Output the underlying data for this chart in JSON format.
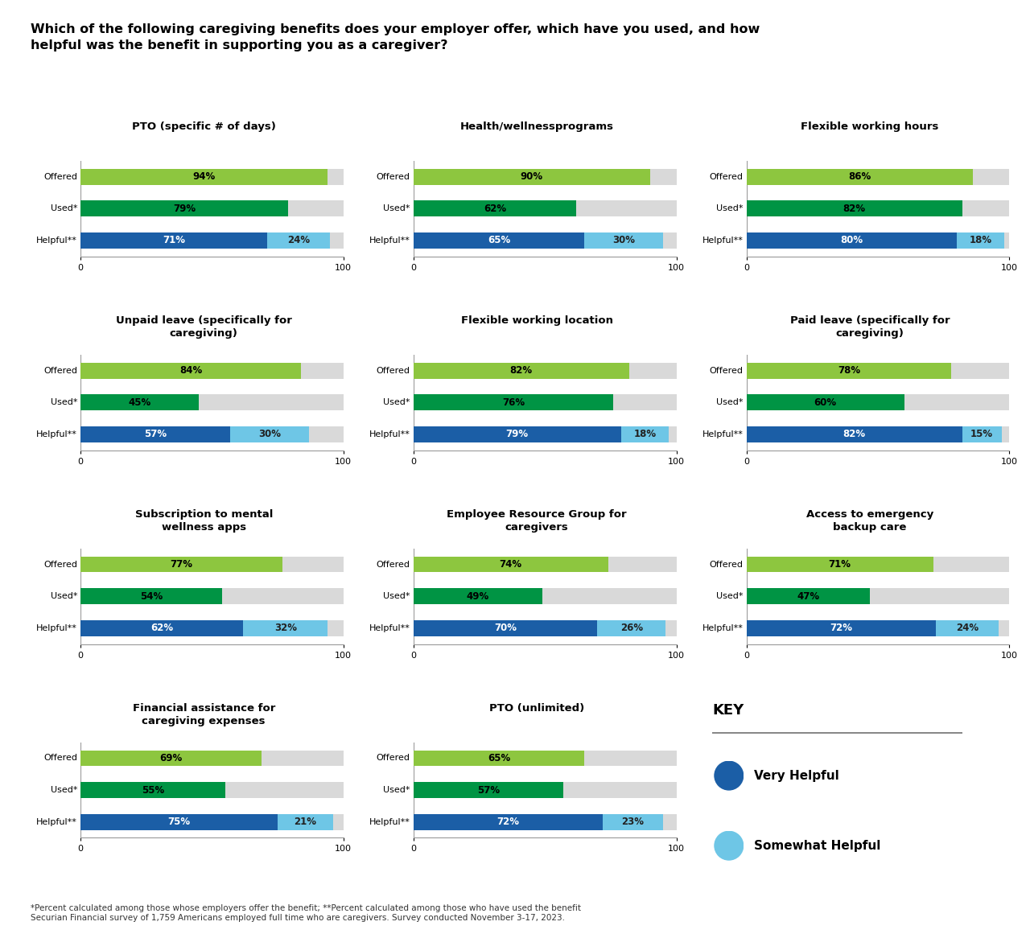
{
  "title": "Which of the following caregiving benefits does your employer offer, which have you used, and how\nhelpful was the benefit in supporting you as a caregiver?",
  "footnote": "*Percent calculated among those whose employers offer the benefit; **Percent calculated among those who have used the benefit\nSecurian Financial survey of 1,759 Americans employed full time who are caregivers. Survey conducted November 3-17, 2023.",
  "color_offered": "#8DC63F",
  "color_used": "#009444",
  "color_very_helpful": "#1B5EA6",
  "color_somewhat_helpful": "#6EC6E6",
  "color_bg_bar": "#D9D9D9",
  "charts": [
    {
      "title": "PTO (specific # of days)",
      "offered": 94,
      "used": 79,
      "very_helpful": 71,
      "somewhat_helpful": 24,
      "row": 0,
      "col": 0
    },
    {
      "title": "Health/wellnessprograms",
      "offered": 90,
      "used": 62,
      "very_helpful": 65,
      "somewhat_helpful": 30,
      "row": 0,
      "col": 1
    },
    {
      "title": "Flexible working hours",
      "offered": 86,
      "used": 82,
      "very_helpful": 80,
      "somewhat_helpful": 18,
      "row": 0,
      "col": 2
    },
    {
      "title": "Unpaid leave (specifically for\ncaregiving)",
      "offered": 84,
      "used": 45,
      "very_helpful": 57,
      "somewhat_helpful": 30,
      "row": 1,
      "col": 0
    },
    {
      "title": "Flexible working location",
      "offered": 82,
      "used": 76,
      "very_helpful": 79,
      "somewhat_helpful": 18,
      "row": 1,
      "col": 1
    },
    {
      "title": "Paid leave (specifically for\ncaregiving)",
      "offered": 78,
      "used": 60,
      "very_helpful": 82,
      "somewhat_helpful": 15,
      "row": 1,
      "col": 2
    },
    {
      "title": "Subscription to mental\nwellness apps",
      "offered": 77,
      "used": 54,
      "very_helpful": 62,
      "somewhat_helpful": 32,
      "row": 2,
      "col": 0
    },
    {
      "title": "Employee Resource Group for\ncaregivers",
      "offered": 74,
      "used": 49,
      "very_helpful": 70,
      "somewhat_helpful": 26,
      "row": 2,
      "col": 1
    },
    {
      "title": "Access to emergency\nbackup care",
      "offered": 71,
      "used": 47,
      "very_helpful": 72,
      "somewhat_helpful": 24,
      "row": 2,
      "col": 2
    },
    {
      "title": "Financial assistance for\ncaregiving expenses",
      "offered": 69,
      "used": 55,
      "very_helpful": 75,
      "somewhat_helpful": 21,
      "row": 3,
      "col": 0
    },
    {
      "title": "PTO (unlimited)",
      "offered": 65,
      "used": 57,
      "very_helpful": 72,
      "somewhat_helpful": 23,
      "row": 3,
      "col": 1
    }
  ],
  "key_title": "KEY",
  "key_very_helpful": "Very Helpful",
  "key_somewhat_helpful": "Somewhat Helpful"
}
